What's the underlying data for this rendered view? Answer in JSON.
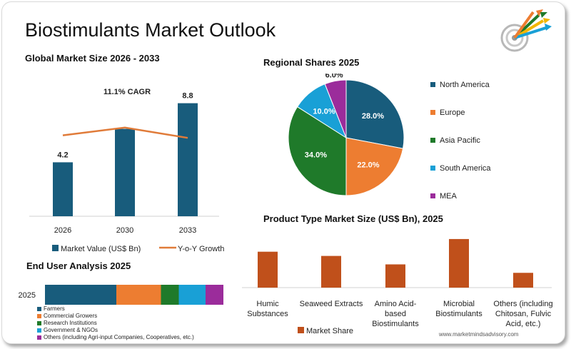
{
  "page_title": "Biostimulants Market Outlook",
  "website": "www.marketmindsadvisory.com",
  "logo": {
    "icon": "arrows-target-icon"
  },
  "chart_data": [
    {
      "id": "global",
      "type": "bar",
      "title": "Global Market Size 2026 - 2033",
      "categories": [
        "2026",
        "2030",
        "2033"
      ],
      "series": [
        {
          "name": "Market Value (US$ Bn)",
          "values": [
            4.2,
            6.8,
            8.8
          ],
          "labels": [
            "4.2",
            "",
            "8.8"
          ],
          "color": "#185C7C"
        }
      ],
      "line": {
        "name": "Y-o-Y Growth",
        "values": [
          6.3,
          6.9,
          6.1
        ],
        "color": "#E07B39"
      },
      "annotation": "11.1% CAGR",
      "ylim": [
        0,
        10
      ],
      "grid": false,
      "legend": "bottom"
    },
    {
      "id": "regional",
      "type": "pie",
      "title": "Regional Shares 2025",
      "slices": [
        {
          "name": "North America",
          "value": 28.0,
          "label": "28.0%",
          "color": "#185C7C"
        },
        {
          "name": "Europe",
          "value": 22.0,
          "label": "22.0%",
          "color": "#ED7D31"
        },
        {
          "name": "Asia Pacific",
          "value": 34.0,
          "label": "34.0%",
          "color": "#1F7A2A"
        },
        {
          "name": "South America",
          "value": 10.0,
          "label": "10.0%",
          "color": "#19A0D6"
        },
        {
          "name": "MEA",
          "value": 6.0,
          "label": "6.0%",
          "color": "#9B2C9B"
        }
      ],
      "legend": "right"
    },
    {
      "id": "product",
      "type": "bar",
      "title": "Product Type Market Size (US$ Bn), 2025",
      "categories": [
        [
          "Humic",
          "Substances"
        ],
        [
          "Seaweed Extracts"
        ],
        [
          "Amino Acid-",
          "based",
          "Biostimulants"
        ],
        [
          "Microbial",
          "Biostimulants"
        ],
        [
          "Others (including",
          "Chitosan, Fulvic",
          "Acid, etc.)"
        ]
      ],
      "series": [
        {
          "name": "Market Share",
          "values": [
            1.7,
            1.5,
            1.1,
            2.3,
            0.7
          ],
          "color": "#C0501B"
        }
      ],
      "ylim": [
        0,
        2.5
      ],
      "grid": false,
      "legend": "bottom"
    },
    {
      "id": "enduser",
      "type": "bar",
      "orientation": "horizontal-stacked",
      "title": "End User Analysis 2025",
      "categories": [
        "2025"
      ],
      "series": [
        {
          "name": "Farmers",
          "values": [
            40
          ],
          "color": "#185C7C"
        },
        {
          "name": "Commercial Growers",
          "values": [
            25
          ],
          "color": "#ED7D31"
        },
        {
          "name": "Research Institutions",
          "values": [
            10
          ],
          "color": "#1F7A2A"
        },
        {
          "name": "Government & NGOs",
          "values": [
            15
          ],
          "color": "#19A0D6"
        },
        {
          "name": "Others (including Agri-input Companies, Cooperatives, etc.)",
          "values": [
            10
          ],
          "color": "#9B2C9B"
        }
      ],
      "legend": "bottom-left"
    }
  ]
}
